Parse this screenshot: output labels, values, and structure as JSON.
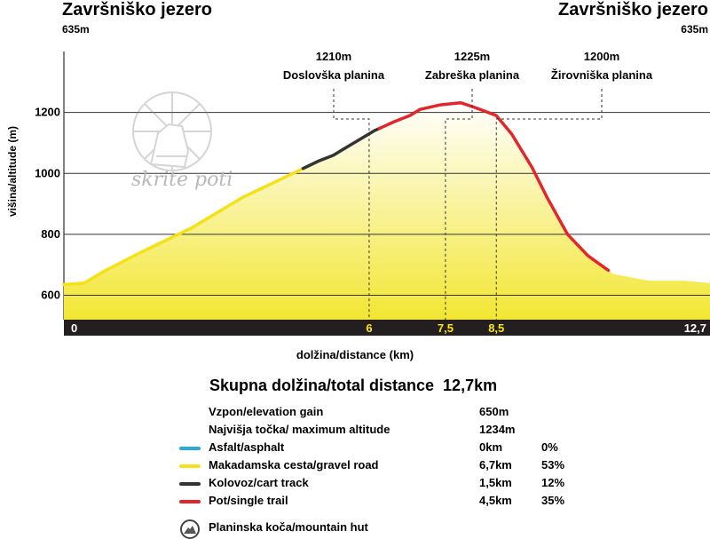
{
  "start": {
    "name": "Završniško jezero",
    "altitude": "635m"
  },
  "end": {
    "name": "Završniško jezero",
    "altitude": "635m"
  },
  "waypoints": [
    {
      "altitude": "1210m",
      "name": "Doslovška planina",
      "km": 6
    },
    {
      "altitude": "1225m",
      "name": "Zabreška planina",
      "km": 7.5
    },
    {
      "altitude": "1200m",
      "name": "Žirovniška planina",
      "km": 8.5
    }
  ],
  "watermark": {
    "text": "skrite poti"
  },
  "chart_data": {
    "type": "area",
    "xlabel": "dolžina/distance (km)",
    "ylabel": "višina/altitude (m)",
    "ylim": [
      520,
      1400
    ],
    "xlim": [
      0,
      12.7
    ],
    "yticks": [
      "600",
      "800",
      "1000",
      "1200"
    ],
    "grid": true,
    "x_tick_labels": [
      "0",
      "6",
      "7,5",
      "8,5",
      "12,7"
    ],
    "fill_colors": {
      "top": "#ffffff",
      "bottom": "#f2e632"
    },
    "profile": [
      {
        "x": 0.0,
        "y": 635
      },
      {
        "x": 0.4,
        "y": 640
      },
      {
        "x": 0.8,
        "y": 680
      },
      {
        "x": 1.5,
        "y": 740
      },
      {
        "x": 2.5,
        "y": 820
      },
      {
        "x": 3.0,
        "y": 870
      },
      {
        "x": 3.5,
        "y": 920
      },
      {
        "x": 4.0,
        "y": 960
      },
      {
        "x": 4.5,
        "y": 1000
      },
      {
        "x": 5.0,
        "y": 1040
      },
      {
        "x": 5.3,
        "y": 1060
      },
      {
        "x": 5.6,
        "y": 1090
      },
      {
        "x": 5.9,
        "y": 1120
      },
      {
        "x": 6.1,
        "y": 1140
      },
      {
        "x": 6.5,
        "y": 1170
      },
      {
        "x": 6.8,
        "y": 1190
      },
      {
        "x": 7.0,
        "y": 1210
      },
      {
        "x": 7.4,
        "y": 1225
      },
      {
        "x": 7.8,
        "y": 1232
      },
      {
        "x": 8.1,
        "y": 1215
      },
      {
        "x": 8.5,
        "y": 1190
      },
      {
        "x": 8.8,
        "y": 1130
      },
      {
        "x": 9.2,
        "y": 1020
      },
      {
        "x": 9.5,
        "y": 920
      },
      {
        "x": 9.9,
        "y": 800
      },
      {
        "x": 10.3,
        "y": 730
      },
      {
        "x": 10.8,
        "y": 670
      },
      {
        "x": 11.5,
        "y": 648
      },
      {
        "x": 12.2,
        "y": 648
      },
      {
        "x": 12.7,
        "y": 640
      }
    ],
    "segments": [
      {
        "name": "Makadamska cesta/gravel road",
        "color": "#f5e11a",
        "from": 0,
        "to": 4.7
      },
      {
        "name": "Kolovoz/cart track",
        "color": "#333333",
        "from": 4.7,
        "to": 6.2
      },
      {
        "name": "Pot/single trail",
        "color": "#e3262b",
        "from": 6.2,
        "to": 10.7
      }
    ]
  },
  "summary": {
    "total_label": "Skupna dolžina/total distance",
    "total_value": "12,7km",
    "rows": [
      {
        "label": "Vzpon/elevation gain",
        "value": "650m",
        "percent": "",
        "legend": "none"
      },
      {
        "label": "Najvišja točka/ maximum altitude",
        "value": "1234m",
        "percent": "",
        "legend": "none"
      },
      {
        "label": "Asfalt/asphalt",
        "value": "0km",
        "percent": "0%",
        "legend": "line",
        "color": "#2aa8e0"
      },
      {
        "label": "Makadamska cesta/gravel road",
        "value": "6,7km",
        "percent": "53%",
        "legend": "line",
        "color": "#f5e11a"
      },
      {
        "label": "Kolovoz/cart track",
        "value": "1,5km",
        "percent": "12%",
        "legend": "line",
        "color": "#333333"
      },
      {
        "label": "Pot/single trail",
        "value": "4,5km",
        "percent": "35%",
        "legend": "line",
        "color": "#e3262b"
      }
    ],
    "hut_label": "Planinska koča/mountain hut"
  }
}
